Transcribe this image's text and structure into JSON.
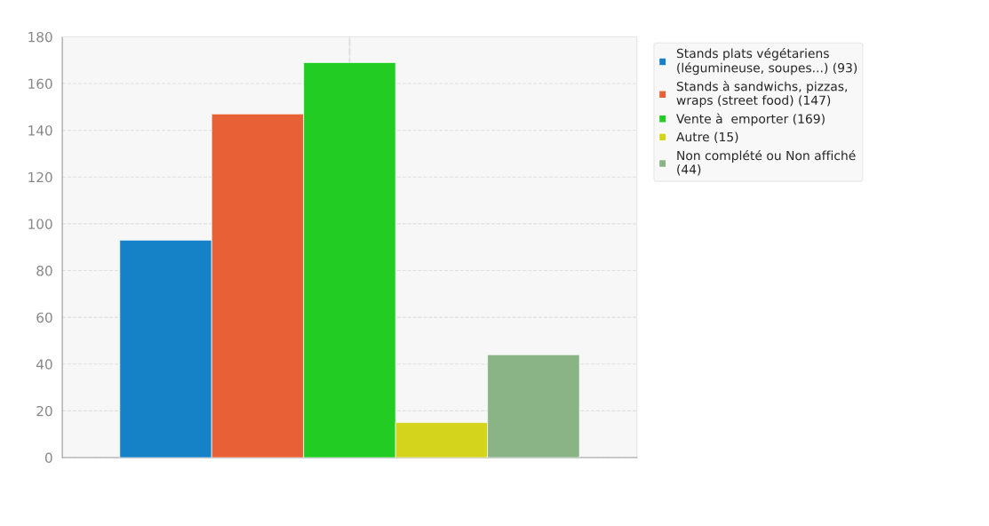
{
  "chart_data": {
    "type": "bar",
    "categories": [
      null
    ],
    "series": [
      {
        "name": "Stands plats végétariens (légumineuse, soupes...) (93)",
        "color": "#1582c8",
        "values": [
          93
        ]
      },
      {
        "name": "Stands à sandwichs, pizzas, wraps (street food) (147)",
        "color": "#e86035",
        "values": [
          147
        ]
      },
      {
        "name": "Vente à  emporter (169)",
        "color": "#22cc22",
        "values": [
          169
        ]
      },
      {
        "name": "Autre (15)",
        "color": "#d4d41c",
        "values": [
          15
        ]
      },
      {
        "name": "Non complété ou Non affiché (44)",
        "color": "#8ab386",
        "values": [
          44
        ]
      }
    ],
    "ylim": [
      0,
      180
    ],
    "yticks": [
      0,
      20,
      40,
      60,
      80,
      100,
      120,
      140,
      160,
      180
    ],
    "grid": true,
    "legend": "top right"
  }
}
